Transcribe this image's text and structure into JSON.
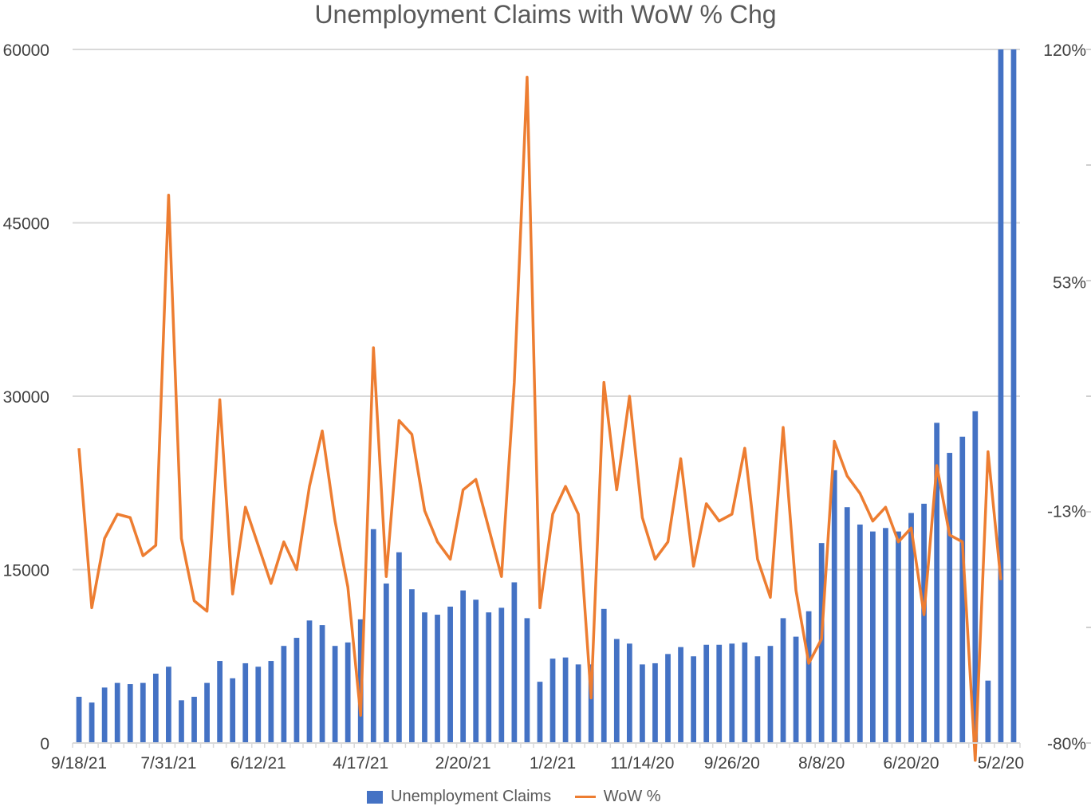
{
  "chart_data": {
    "type": "bar",
    "title": "Unemployment Claims with WoW % Chg",
    "xlabel": "",
    "ylabel": "",
    "y_left": {
      "ticks": [
        "0",
        "15000",
        "30000",
        "45000",
        "60000"
      ],
      "lim": [
        0,
        60000
      ]
    },
    "y_right": {
      "ticks": [
        "-80%",
        "-13%",
        "53%",
        "120%"
      ],
      "lim": [
        -80,
        120
      ]
    },
    "x_tick_labels": [
      "9/18/21",
      "7/31/21",
      "6/12/21",
      "4/17/21",
      "2/20/21",
      "1/2/21",
      "11/14/20",
      "9/26/20",
      "8/8/20",
      "6/20/20",
      "5/2/20"
    ],
    "x_tick_label_positions": [
      0,
      7,
      14,
      22,
      30,
      37,
      44,
      51,
      58,
      65,
      72
    ],
    "grid": true,
    "legend_position": "bottom",
    "series": [
      {
        "name": "Unemployment Claims",
        "kind": "bar",
        "axis": "left",
        "color": "#4472c4",
        "values": [
          4000,
          3500,
          4800,
          5200,
          5100,
          5200,
          6000,
          6600,
          3700,
          4000,
          5200,
          7100,
          5600,
          6900,
          6600,
          7100,
          8400,
          9100,
          10600,
          10200,
          8400,
          8700,
          10700,
          18500,
          13800,
          16500,
          13300,
          11300,
          11100,
          11800,
          13200,
          12400,
          11300,
          11700,
          13900,
          10800,
          5300,
          7300,
          7400,
          6800,
          6800,
          11600,
          9000,
          8600,
          6800,
          6900,
          7700,
          8300,
          7500,
          8500,
          8500,
          8600,
          8700,
          7500,
          8400,
          10800,
          9200,
          11400,
          17300,
          23600,
          20400,
          18900,
          18300,
          18600,
          18300,
          19900,
          20700,
          27700,
          25100,
          26500,
          28700,
          5400,
          60000,
          60000
        ]
      },
      {
        "name": "WoW %",
        "kind": "line",
        "axis": "right",
        "color": "#ed7d31",
        "values": [
          5,
          -41,
          -21,
          -14,
          -15,
          -26,
          -23,
          78,
          -21,
          -39,
          -42,
          19,
          -37,
          -12,
          -23,
          -34,
          -22,
          -30,
          -6,
          10,
          -16,
          -35,
          -72,
          34,
          -32,
          13,
          9,
          -13,
          -22,
          -27,
          -7,
          -4,
          -18,
          -32,
          24,
          112,
          -41,
          -14,
          -6,
          -14,
          -67,
          24,
          -7,
          20,
          -15,
          -27,
          -22,
          2,
          -29,
          -11,
          -16,
          -14,
          5,
          -27,
          -38,
          11,
          -36,
          -57,
          -50,
          7,
          -3,
          -8,
          -16,
          -12,
          -22,
          -18,
          -43,
          0,
          -20,
          -22,
          -85,
          4,
          -33
        ]
      }
    ]
  },
  "legend": {
    "bar_label": "Unemployment Claims",
    "line_label": "WoW %"
  }
}
